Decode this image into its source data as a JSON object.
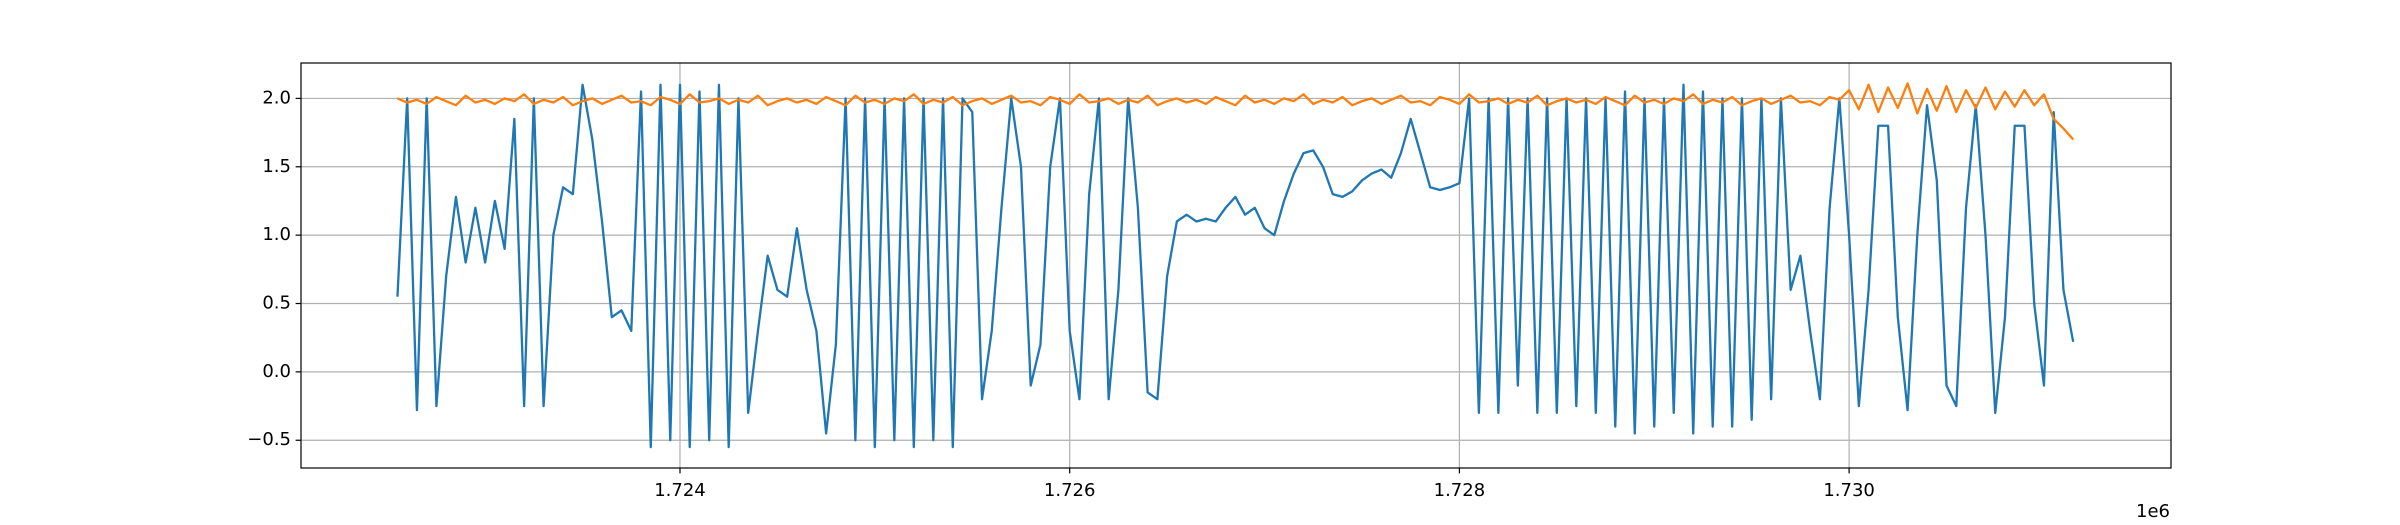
{
  "chart_data": {
    "type": "line",
    "x_offset_label": "1e6",
    "x": [
      1722550,
      1722600,
      1722650,
      1722700,
      1722750,
      1722800,
      1722850,
      1722900,
      1722950,
      1723000,
      1723050,
      1723100,
      1723150,
      1723200,
      1723250,
      1723300,
      1723350,
      1723400,
      1723450,
      1723500,
      1723550,
      1723600,
      1723650,
      1723700,
      1723750,
      1723800,
      1723850,
      1723900,
      1723950,
      1724000,
      1724050,
      1724100,
      1724150,
      1724200,
      1724250,
      1724300,
      1724350,
      1724400,
      1724450,
      1724500,
      1724550,
      1724600,
      1724650,
      1724700,
      1724750,
      1724800,
      1724850,
      1724900,
      1724950,
      1725000,
      1725050,
      1725100,
      1725150,
      1725200,
      1725250,
      1725300,
      1725350,
      1725400,
      1725450,
      1725500,
      1725550,
      1725600,
      1725650,
      1725700,
      1725750,
      1725800,
      1725850,
      1725900,
      1725950,
      1726000,
      1726050,
      1726100,
      1726150,
      1726200,
      1726250,
      1726300,
      1726350,
      1726400,
      1726450,
      1726500,
      1726550,
      1726600,
      1726650,
      1726700,
      1726750,
      1726800,
      1726850,
      1726900,
      1726950,
      1727000,
      1727050,
      1727100,
      1727150,
      1727200,
      1727250,
      1727300,
      1727350,
      1727400,
      1727450,
      1727500,
      1727550,
      1727600,
      1727650,
      1727700,
      1727750,
      1727800,
      1727850,
      1727900,
      1727950,
      1728000,
      1728050,
      1728100,
      1728150,
      1728200,
      1728250,
      1728300,
      1728350,
      1728400,
      1728450,
      1728500,
      1728550,
      1728600,
      1728650,
      1728700,
      1728750,
      1728800,
      1728850,
      1728900,
      1728950,
      1729000,
      1729050,
      1729100,
      1729150,
      1729200,
      1729250,
      1729300,
      1729350,
      1729400,
      1729450,
      1729500,
      1729550,
      1729600,
      1729650,
      1729700,
      1729750,
      1729800,
      1729850,
      1729900,
      1729950,
      1730000,
      1730050,
      1730100,
      1730150,
      1730200,
      1730250,
      1730300,
      1730350,
      1730400,
      1730450,
      1730500,
      1730550,
      1730600,
      1730650,
      1730700,
      1730750,
      1730800,
      1730850,
      1730900,
      1730950,
      1731000,
      1731050,
      1731100,
      1731150
    ],
    "series": [
      {
        "color": "#1f77b4",
        "values": [
          0.55,
          2.0,
          -0.28,
          2.0,
          -0.25,
          0.7,
          1.28,
          0.8,
          1.2,
          0.8,
          1.25,
          0.9,
          1.85,
          -0.25,
          2.0,
          -0.25,
          1.0,
          1.35,
          1.3,
          2.1,
          1.7,
          1.1,
          0.4,
          0.45,
          0.3,
          2.05,
          -0.55,
          2.1,
          -0.5,
          2.1,
          -0.55,
          2.05,
          -0.5,
          2.1,
          -0.55,
          2.0,
          -0.3,
          0.3,
          0.85,
          0.6,
          0.55,
          1.05,
          0.6,
          0.3,
          -0.45,
          0.2,
          2.0,
          -0.5,
          2.0,
          -0.55,
          2.0,
          -0.5,
          2.0,
          -0.55,
          2.0,
          -0.5,
          2.0,
          -0.55,
          2.0,
          1.9,
          -0.2,
          0.3,
          1.2,
          2.0,
          1.5,
          -0.1,
          0.2,
          1.5,
          2.0,
          0.3,
          -0.2,
          1.3,
          2.0,
          -0.2,
          0.6,
          2.0,
          1.2,
          -0.15,
          -0.2,
          0.7,
          1.1,
          1.15,
          1.1,
          1.12,
          1.1,
          1.2,
          1.28,
          1.15,
          1.2,
          1.05,
          1.0,
          1.25,
          1.45,
          1.6,
          1.62,
          1.5,
          1.3,
          1.28,
          1.32,
          1.4,
          1.45,
          1.48,
          1.42,
          1.6,
          1.85,
          1.6,
          1.35,
          1.33,
          1.35,
          1.38,
          2.0,
          -0.3,
          2.0,
          -0.3,
          2.0,
          -0.1,
          2.0,
          -0.3,
          2.0,
          -0.3,
          2.0,
          -0.25,
          2.0,
          -0.3,
          2.0,
          -0.4,
          2.05,
          -0.45,
          2.0,
          -0.4,
          2.0,
          -0.3,
          2.1,
          -0.45,
          2.05,
          -0.4,
          2.0,
          -0.4,
          2.0,
          -0.35,
          2.0,
          -0.2,
          2.0,
          0.6,
          0.85,
          0.3,
          -0.2,
          1.2,
          2.0,
          1.0,
          -0.25,
          0.6,
          1.8,
          1.8,
          0.4,
          -0.28,
          1.0,
          1.95,
          1.4,
          -0.1,
          -0.25,
          1.2,
          1.95,
          1.0,
          -0.3,
          0.4,
          1.8,
          1.8,
          0.5,
          -0.1,
          1.9,
          0.6,
          0.22
        ]
      },
      {
        "color": "#ff7f0e",
        "values": [
          2.0,
          1.97,
          1.99,
          1.96,
          2.01,
          1.98,
          1.95,
          2.02,
          1.97,
          1.99,
          1.96,
          2.0,
          1.98,
          2.03,
          1.96,
          1.99,
          1.97,
          2.01,
          1.95,
          1.98,
          2.0,
          1.96,
          1.99,
          2.02,
          1.97,
          1.98,
          1.95,
          2.01,
          1.99,
          1.96,
          2.03,
          1.97,
          1.98,
          2.0,
          1.96,
          1.99,
          1.97,
          2.02,
          1.95,
          1.98,
          2.0,
          1.97,
          1.99,
          1.96,
          2.01,
          1.98,
          1.95,
          2.02,
          1.97,
          1.99,
          1.96,
          2.0,
          1.98,
          2.03,
          1.96,
          1.99,
          1.97,
          2.01,
          1.95,
          1.98,
          2.0,
          1.96,
          1.99,
          2.02,
          1.97,
          1.98,
          1.95,
          2.01,
          1.99,
          1.96,
          2.03,
          1.97,
          1.98,
          2.0,
          1.96,
          1.99,
          1.97,
          2.02,
          1.95,
          1.98,
          2.0,
          1.97,
          1.99,
          1.96,
          2.01,
          1.98,
          1.95,
          2.02,
          1.97,
          1.99,
          1.96,
          2.0,
          1.98,
          2.03,
          1.96,
          1.99,
          1.97,
          2.01,
          1.95,
          1.98,
          2.0,
          1.96,
          1.99,
          2.02,
          1.97,
          1.98,
          1.95,
          2.01,
          1.99,
          1.96,
          2.03,
          1.97,
          1.98,
          2.0,
          1.96,
          1.99,
          1.97,
          2.02,
          1.95,
          1.98,
          2.0,
          1.97,
          1.99,
          1.96,
          2.01,
          1.98,
          1.95,
          2.02,
          1.97,
          1.99,
          1.96,
          2.0,
          1.98,
          2.03,
          1.96,
          1.99,
          1.97,
          2.01,
          1.95,
          1.98,
          2.0,
          1.96,
          1.99,
          2.02,
          1.97,
          1.98,
          1.95,
          2.01,
          1.99,
          2.06,
          1.92,
          2.1,
          1.9,
          2.08,
          1.93,
          2.11,
          1.89,
          2.07,
          1.91,
          2.09,
          1.9,
          2.06,
          1.93,
          2.08,
          1.92,
          2.05,
          1.94,
          2.06,
          1.95,
          2.03,
          1.85,
          1.78,
          1.7
        ]
      }
    ],
    "xlim": [
      1722055,
      1731652
    ],
    "ylim": [
      -0.703,
      2.259
    ],
    "xticks": [
      {
        "value": 1724000,
        "label": "1.724"
      },
      {
        "value": 1726000,
        "label": "1.726"
      },
      {
        "value": 1728000,
        "label": "1.728"
      },
      {
        "value": 1730000,
        "label": "1.730"
      }
    ],
    "yticks": [
      {
        "value": -0.5,
        "label": "−0.5"
      },
      {
        "value": 0,
        "label": "0.0"
      },
      0.5,
      {
        "value": 1,
        "label": "1.0"
      },
      1.5,
      {
        "value": 2,
        "label": "2.0"
      }
    ],
    "grid": true
  }
}
